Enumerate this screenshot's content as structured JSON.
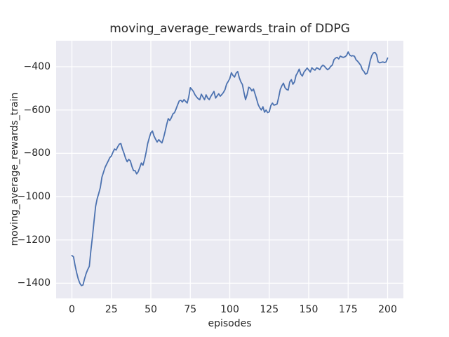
{
  "colors": {
    "figure_background": "#ffffff",
    "plot_background": "#eaeaf2",
    "grid": "#ffffff",
    "line": "#4c72b0",
    "text": "#262626"
  },
  "chart_data": {
    "type": "line",
    "title": "moving_average_rewards_train of DDPG",
    "xlabel": "episodes",
    "ylabel": "moving_average_rewards_train",
    "legend": "none",
    "grid": true,
    "xlim": [
      -10,
      210
    ],
    "ylim": [
      -1470,
      -280
    ],
    "xticks": [
      0,
      25,
      50,
      75,
      100,
      125,
      150,
      175,
      200
    ],
    "yticks": [
      -400,
      -600,
      -800,
      -1000,
      -1200,
      -1400
    ],
    "series_name": "moving_average_rewards_train",
    "x_start": 0,
    "x_step": 1,
    "values": [
      -1272,
      -1278,
      -1318,
      -1352,
      -1380,
      -1400,
      -1411,
      -1408,
      -1380,
      -1355,
      -1337,
      -1322,
      -1250,
      -1185,
      -1115,
      -1045,
      -1010,
      -985,
      -958,
      -910,
      -888,
      -865,
      -850,
      -835,
      -820,
      -812,
      -795,
      -780,
      -785,
      -770,
      -758,
      -755,
      -780,
      -800,
      -823,
      -839,
      -828,
      -835,
      -860,
      -880,
      -880,
      -895,
      -885,
      -865,
      -845,
      -855,
      -830,
      -795,
      -755,
      -728,
      -705,
      -697,
      -720,
      -735,
      -748,
      -737,
      -745,
      -752,
      -730,
      -700,
      -668,
      -640,
      -648,
      -635,
      -618,
      -612,
      -595,
      -575,
      -558,
      -555,
      -563,
      -552,
      -560,
      -568,
      -540,
      -497,
      -505,
      -515,
      -530,
      -540,
      -548,
      -552,
      -527,
      -540,
      -552,
      -530,
      -545,
      -552,
      -537,
      -525,
      -514,
      -545,
      -535,
      -525,
      -536,
      -528,
      -519,
      -505,
      -480,
      -468,
      -455,
      -428,
      -440,
      -448,
      -430,
      -422,
      -450,
      -470,
      -482,
      -520,
      -552,
      -528,
      -495,
      -500,
      -512,
      -503,
      -525,
      -550,
      -575,
      -590,
      -600,
      -585,
      -610,
      -600,
      -612,
      -608,
      -580,
      -568,
      -578,
      -575,
      -572,
      -540,
      -505,
      -488,
      -476,
      -497,
      -505,
      -508,
      -470,
      -460,
      -481,
      -470,
      -440,
      -427,
      -411,
      -435,
      -443,
      -425,
      -416,
      -406,
      -415,
      -425,
      -405,
      -412,
      -416,
      -405,
      -408,
      -414,
      -400,
      -393,
      -398,
      -407,
      -414,
      -408,
      -398,
      -392,
      -368,
      -360,
      -357,
      -364,
      -351,
      -355,
      -357,
      -354,
      -348,
      -332,
      -346,
      -351,
      -349,
      -352,
      -368,
      -375,
      -384,
      -394,
      -414,
      -422,
      -435,
      -430,
      -405,
      -370,
      -348,
      -336,
      -334,
      -345,
      -378,
      -382,
      -380,
      -378,
      -381,
      -378,
      -360
    ]
  }
}
